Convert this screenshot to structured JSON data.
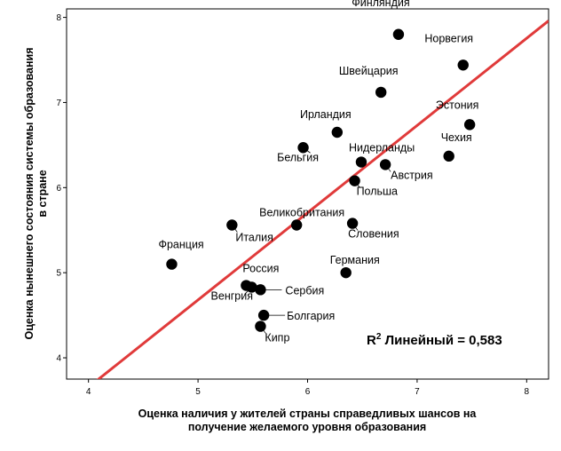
{
  "chart_data": {
    "type": "scatter",
    "xlabel_lines": [
      "Оценка наличия у жителей страны справедливых шансов на",
      "получение желаемого уровня образования"
    ],
    "ylabel_lines": [
      "Оценка нынешнего состояния системы образования",
      "в стране"
    ],
    "xlim": [
      3.8,
      8.2
    ],
    "ylim": [
      3.75,
      8.1
    ],
    "xticks": [
      "4",
      "5",
      "6",
      "7",
      "8"
    ],
    "yticks": [
      "4",
      "5",
      "6",
      "7",
      "8"
    ],
    "grid": false,
    "points": [
      {
        "label": "Финляндия",
        "x": 6.83,
        "y": 7.8
      },
      {
        "label": "Норвегия",
        "x": 7.42,
        "y": 7.44
      },
      {
        "label": "Швейцария",
        "x": 6.67,
        "y": 7.12
      },
      {
        "label": "Эстония",
        "x": 7.48,
        "y": 6.74
      },
      {
        "label": "Ирландия",
        "x": 6.27,
        "y": 6.65
      },
      {
        "label": "Бельгия",
        "x": 5.96,
        "y": 6.47
      },
      {
        "label": "Чехия",
        "x": 7.29,
        "y": 6.37
      },
      {
        "label": "Нидерланды",
        "x": 6.49,
        "y": 6.3
      },
      {
        "label": "Австрия",
        "x": 6.71,
        "y": 6.27
      },
      {
        "label": "Польша",
        "x": 6.43,
        "y": 6.08
      },
      {
        "label": "Великобритания",
        "x": 5.9,
        "y": 5.56
      },
      {
        "label": "Италия",
        "x": 5.31,
        "y": 5.56
      },
      {
        "label": "Словения",
        "x": 6.41,
        "y": 5.58
      },
      {
        "label": "Франция",
        "x": 4.76,
        "y": 5.1
      },
      {
        "label": "Германия",
        "x": 6.35,
        "y": 5.0
      },
      {
        "label": "Россия",
        "x": 5.44,
        "y": 4.85
      },
      {
        "label": "Венгрия",
        "x": 5.49,
        "y": 4.83
      },
      {
        "label": "Сербия",
        "x": 5.57,
        "y": 4.8
      },
      {
        "label": "Болгария",
        "x": 5.6,
        "y": 4.5
      },
      {
        "label": "Кипр",
        "x": 5.57,
        "y": 4.37
      }
    ],
    "fit_line": {
      "x": [
        3.8,
        8.2
      ],
      "y": [
        3.45,
        7.96
      ],
      "color": "#e03a3a"
    },
    "annotation": {
      "prefix": "R",
      "sup": "2",
      "text": " Линейный = 0,583"
    },
    "marker_color": "#000000"
  }
}
